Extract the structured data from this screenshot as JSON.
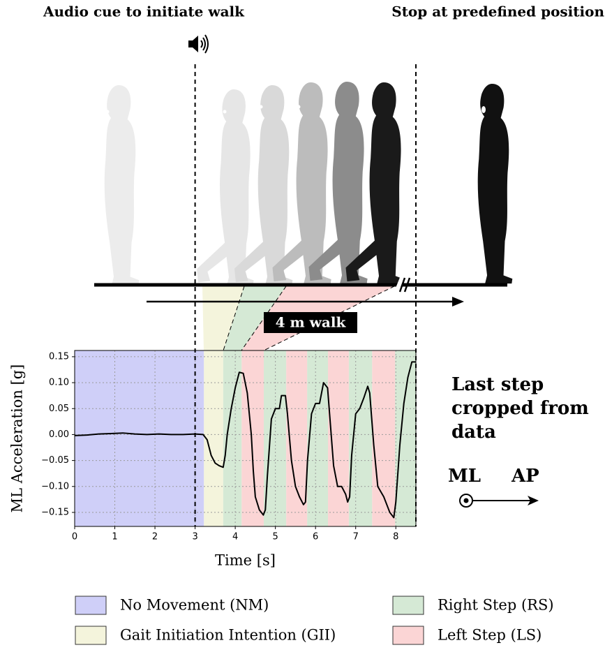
{
  "chart_data": {
    "type": "line",
    "annotations": {
      "audio_cue": "Audio cue to initiate walk",
      "stop": "Stop at predefined position",
      "walk": "4 m walk",
      "cropped": [
        "Last step",
        "cropped from",
        "data"
      ],
      "ml": "ML",
      "ap": "AP"
    },
    "x_label": "Time [s]",
    "y_label": "ML Acceleration [g]",
    "xlim": [
      0,
      8.5
    ],
    "ylim": [
      -0.177,
      0.162
    ],
    "xticks": [
      0,
      1,
      2,
      3,
      4,
      5,
      6,
      7,
      8
    ],
    "yticks": [
      {
        "value": -0.15,
        "label": "−0.15"
      },
      {
        "value": -0.1,
        "label": "−0.10"
      },
      {
        "value": -0.05,
        "label": "−0.05"
      },
      {
        "value": 0,
        "label": "0.00"
      },
      0.05,
      {
        "value": 0.1,
        "label": "0.10"
      },
      0.15
    ],
    "grid": true,
    "vlines": [
      3,
      8.5
    ],
    "color": "#000000",
    "x": [
      0,
      0.3,
      0.6,
      0.9,
      1.2,
      1.5,
      1.8,
      2.1,
      2.4,
      2.7,
      3.0,
      3.2,
      3.3,
      3.4,
      3.5,
      3.6,
      3.7,
      3.75,
      3.8,
      3.9,
      4.0,
      4.1,
      4.2,
      4.3,
      4.4,
      4.45,
      4.5,
      4.6,
      4.7,
      4.75,
      4.8,
      4.9,
      5.0,
      5.1,
      5.15,
      5.25,
      5.3,
      5.4,
      5.5,
      5.6,
      5.7,
      5.75,
      5.8,
      5.9,
      6.0,
      6.1,
      6.2,
      6.3,
      6.35,
      6.45,
      6.55,
      6.65,
      6.75,
      6.8,
      6.85,
      6.9,
      7.0,
      7.1,
      7.2,
      7.3,
      7.35,
      7.45,
      7.55,
      7.7,
      7.85,
      7.95,
      8.0,
      8.1,
      8.2,
      8.3,
      8.4,
      8.5
    ],
    "values": [
      -0.002,
      -0.001,
      0.001,
      0.002,
      0.003,
      0.001,
      0.0,
      0.001,
      0.0,
      0.0,
      0.001,
      0.0,
      -0.01,
      -0.04,
      -0.055,
      -0.06,
      -0.063,
      -0.04,
      0.0,
      0.05,
      0.09,
      0.12,
      0.118,
      0.08,
      0.0,
      -0.07,
      -0.12,
      -0.145,
      -0.155,
      -0.145,
      -0.08,
      0.03,
      0.05,
      0.05,
      0.075,
      0.075,
      0.04,
      -0.05,
      -0.1,
      -0.12,
      -0.135,
      -0.13,
      -0.05,
      0.04,
      0.06,
      0.06,
      0.1,
      0.09,
      0.04,
      -0.06,
      -0.1,
      -0.1,
      -0.115,
      -0.13,
      -0.12,
      -0.04,
      0.04,
      0.05,
      0.07,
      0.093,
      0.08,
      -0.02,
      -0.1,
      -0.12,
      -0.15,
      -0.16,
      -0.13,
      -0.02,
      0.06,
      0.11,
      0.14,
      0.14
    ],
    "legend": [
      {
        "name": "No Movement (NM)",
        "color": "#cfcff8",
        "spans": [
          [
            0,
            3.22
          ]
        ]
      },
      {
        "name": "Gait Initiation Intention (GII)",
        "color": "#f4f4dc",
        "spans": [
          [
            3.22,
            3.7
          ]
        ]
      },
      {
        "name": "Right Step (RS)",
        "color": "#d5e9d5",
        "spans": [
          [
            3.7,
            4.16
          ],
          [
            4.71,
            5.27
          ],
          [
            5.79,
            6.31
          ],
          [
            6.83,
            7.41
          ],
          [
            7.98,
            8.5
          ]
        ]
      },
      {
        "name": "Left Step (LS)",
        "color": "#fbd5d5",
        "spans": [
          [
            4.16,
            4.71
          ],
          [
            5.27,
            5.79
          ],
          [
            6.31,
            6.83
          ],
          [
            7.41,
            7.98
          ]
        ]
      }
    ]
  }
}
